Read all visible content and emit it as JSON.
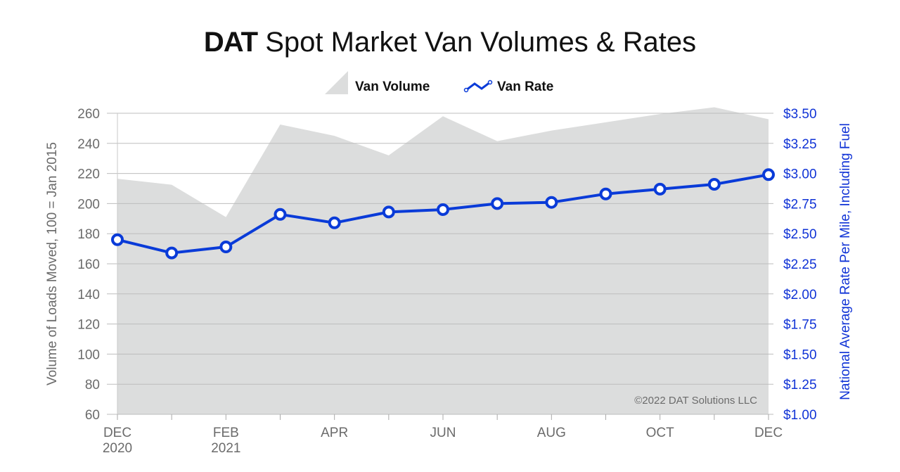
{
  "title_brand": "DAT",
  "title_rest": "Spot Market Van Volumes & Rates",
  "copyright": "©2022 DAT Solutions LLC",
  "colors": {
    "volume_area": "#dcdddd",
    "rate_line": "#0a3bd8",
    "grid": "#bdbdbd",
    "left_axis_text": "#6b6b6b",
    "right_axis_text": "#1033d6"
  },
  "chart_data": {
    "type": "area+line",
    "title": "DAT Spot Market Van Volumes & Rates",
    "legend": {
      "position": "top",
      "entries": [
        "Van Volume",
        "Van Rate"
      ]
    },
    "grid": true,
    "x": [
      "Dec 2020",
      "Jan 2021",
      "Feb 2021",
      "Mar 2021",
      "Apr 2021",
      "May 2021",
      "Jun 2021",
      "Jul 2021",
      "Aug 2021",
      "Sep 2021",
      "Oct 2021",
      "Nov 2021",
      "Dec 2021"
    ],
    "x_tick_labels": [
      [
        "DEC",
        "2020"
      ],
      [
        ""
      ],
      [
        "FEB",
        "2021"
      ],
      [
        ""
      ],
      [
        "APR"
      ],
      [
        ""
      ],
      [
        "JUN"
      ],
      [
        ""
      ],
      [
        "AUG"
      ],
      [
        ""
      ],
      [
        "OCT"
      ],
      [
        ""
      ],
      [
        "DEC"
      ]
    ],
    "ylabel_left": "Volume of Loads Moved, 100 = Jan 2015",
    "ylabel_right": "National Average Rate Per Mile, Including Fuel",
    "ylim_left": [
      60,
      260
    ],
    "ylim_right": [
      1.0,
      3.5
    ],
    "yticks_left": [
      "260",
      "240",
      "220",
      "200",
      "180",
      "160",
      "140",
      "120",
      "100",
      "80",
      "60"
    ],
    "yticks_right": [
      "$3.50",
      "$3.25",
      "$3.00",
      "$2.75",
      "$2.50",
      "$2.25",
      "$2.00",
      "$1.75",
      "$1.50",
      "$1.25",
      "$1.00"
    ],
    "series": [
      {
        "name": "Van Volume",
        "type": "area",
        "axis": "left",
        "values": [
          216.5,
          212.5,
          191,
          252.5,
          245,
          232,
          258,
          241.5,
          248.5,
          254,
          259.5,
          264,
          256
        ]
      },
      {
        "name": "Van Rate",
        "type": "line",
        "axis": "right",
        "values": [
          2.45,
          2.34,
          2.39,
          2.66,
          2.59,
          2.68,
          2.7,
          2.75,
          2.76,
          2.83,
          2.87,
          2.91,
          2.99
        ]
      }
    ]
  }
}
